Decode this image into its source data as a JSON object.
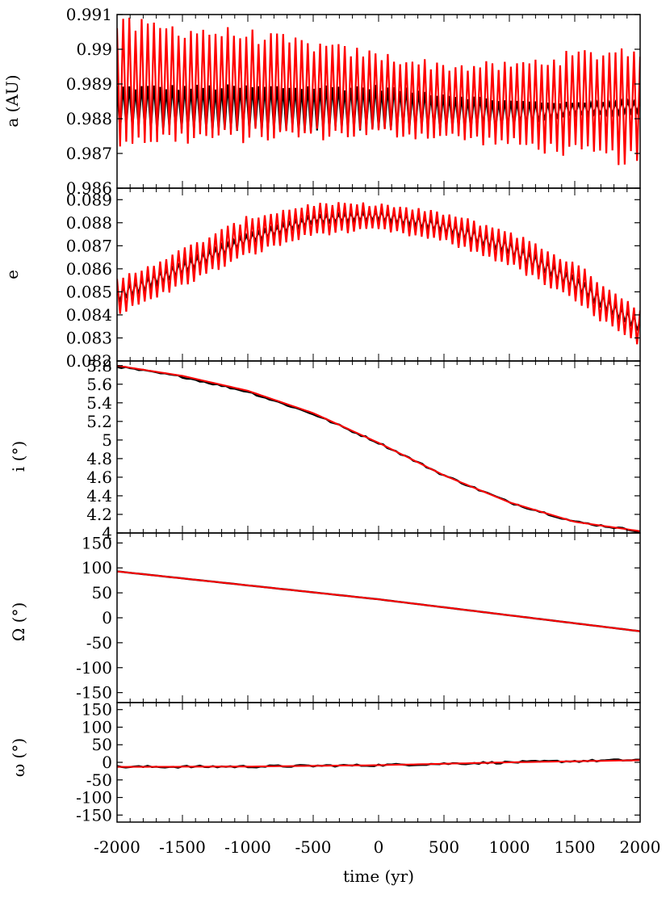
{
  "figure": {
    "xlabel": "time (yr)",
    "xlim": [
      -2000,
      2000
    ],
    "xticks": [
      -2000,
      -1500,
      -1000,
      -500,
      0,
      500,
      1000,
      1500,
      2000
    ],
    "xtick_labels": [
      "-2000",
      "-1500",
      "-1000",
      "-500",
      "0",
      "500",
      "1000",
      "1500",
      "2000"
    ]
  },
  "chart_data": [
    {
      "type": "line",
      "panel": "a",
      "ylabel": "a (AU)",
      "ylim": [
        0.986,
        0.991
      ],
      "yticks": [
        0.986,
        0.987,
        0.988,
        0.989,
        0.99,
        0.991
      ],
      "ytick_labels": [
        "0.986",
        "0.987",
        "0.988",
        "0.989",
        "0.99",
        "0.991"
      ],
      "series": [
        {
          "name": "black",
          "color": "#000000",
          "x": [
            -2000,
            -1000,
            0,
            500,
            1000,
            1500,
            2000
          ],
          "upper": [
            0.9889,
            0.9889,
            0.9889,
            0.9887,
            0.9885,
            0.98845,
            0.9885
          ],
          "lower": [
            0.9877,
            0.9877,
            0.9877,
            0.9877,
            0.98775,
            0.9881,
            0.9882
          ]
        },
        {
          "name": "red",
          "color": "#ff0000",
          "x": [
            -2000,
            -1000,
            0,
            500,
            1000,
            1500,
            2000
          ],
          "upper": [
            0.9907,
            0.9904,
            0.9898,
            0.9895,
            0.9895,
            0.9898,
            0.99
          ],
          "lower": [
            0.9874,
            0.9875,
            0.9876,
            0.9875,
            0.9873,
            0.98705,
            0.9868
          ]
        }
      ]
    },
    {
      "type": "line",
      "panel": "e",
      "ylabel": "e",
      "ylim": [
        0.082,
        0.0895
      ],
      "yticks": [
        0.082,
        0.083,
        0.084,
        0.085,
        0.086,
        0.087,
        0.088,
        0.089
      ],
      "ytick_labels": [
        "0.082",
        "0.083",
        "0.084",
        "0.085",
        "0.086",
        "0.087",
        "0.088",
        "0.089"
      ],
      "series": [
        {
          "name": "black",
          "color": "#000000",
          "x": [
            -2000,
            -1500,
            -1000,
            -500,
            0,
            500,
            1000,
            1500,
            2000
          ],
          "upper": [
            0.0851,
            0.0863,
            0.0875,
            0.0883,
            0.0885,
            0.0881,
            0.0872,
            0.0857,
            0.0838
          ],
          "lower": [
            0.0845,
            0.0858,
            0.0871,
            0.088,
            0.0881,
            0.0876,
            0.0866,
            0.0851,
            0.0832
          ]
        },
        {
          "name": "red",
          "color": "#ff0000",
          "x": [
            -2000,
            -1500,
            -1000,
            -500,
            0,
            500,
            1000,
            1500,
            2000
          ],
          "upper": [
            0.0855,
            0.0868,
            0.0882,
            0.0888,
            0.0888,
            0.0884,
            0.0876,
            0.0862,
            0.0842
          ],
          "lower": [
            0.084,
            0.0853,
            0.0866,
            0.0875,
            0.0877,
            0.0872,
            0.0862,
            0.0846,
            0.0826
          ]
        }
      ]
    },
    {
      "type": "line",
      "panel": "i",
      "ylabel": "i (°)",
      "ylim": [
        4.0,
        5.85
      ],
      "yticks": [
        4.0,
        4.2,
        4.4,
        4.6,
        4.8,
        5.0,
        5.2,
        5.4,
        5.6,
        5.8
      ],
      "ytick_labels": [
        "4",
        "4.2",
        "4.4",
        "4.6",
        "4.8",
        "5",
        "5.2",
        "5.4",
        "5.6",
        "5.8"
      ],
      "series": [
        {
          "name": "black",
          "color": "#000000",
          "x": [
            -2000,
            -1500,
            -1000,
            -500,
            0,
            500,
            1000,
            1500,
            2000
          ],
          "y": [
            5.79,
            5.68,
            5.52,
            5.28,
            4.97,
            4.62,
            4.33,
            4.12,
            4.02
          ]
        },
        {
          "name": "red",
          "color": "#ff0000",
          "x": [
            -2000,
            -1500,
            -1000,
            -500,
            0,
            500,
            1000,
            1500,
            2000
          ],
          "y": [
            5.8,
            5.69,
            5.53,
            5.29,
            4.97,
            4.62,
            4.33,
            4.12,
            4.02
          ]
        }
      ]
    },
    {
      "type": "line",
      "panel": "Omega",
      "ylabel": "Ω (°)",
      "ylim": [
        -170,
        170
      ],
      "yticks": [
        -150,
        -100,
        -50,
        0,
        50,
        100,
        150
      ],
      "ytick_labels": [
        "-150",
        "-100",
        "-50",
        "0",
        "50",
        "100",
        "150"
      ],
      "series": [
        {
          "name": "black",
          "color": "#000000",
          "x": [
            -2000,
            0,
            2000
          ],
          "y": [
            93,
            37,
            -27
          ]
        },
        {
          "name": "red",
          "color": "#ff0000",
          "x": [
            -2000,
            0,
            2000
          ],
          "y": [
            93,
            37,
            -27
          ]
        }
      ]
    },
    {
      "type": "line",
      "panel": "omega",
      "ylabel": "ω (°)",
      "ylim": [
        -170,
        170
      ],
      "yticks": [
        -150,
        -100,
        -50,
        0,
        50,
        100,
        150
      ],
      "ytick_labels": [
        "-150",
        "-100",
        "-50",
        "0",
        "50",
        "100",
        "150"
      ],
      "series": [
        {
          "name": "black",
          "color": "#000000",
          "x": [
            -2000,
            -1000,
            0,
            1000,
            2000
          ],
          "y": [
            -13,
            -12,
            -8,
            0,
            7
          ]
        },
        {
          "name": "red",
          "color": "#ff0000",
          "x": [
            -2000,
            -1000,
            0,
            1000,
            2000
          ],
          "y": [
            -13,
            -12,
            -8,
            0,
            6
          ]
        }
      ]
    }
  ]
}
